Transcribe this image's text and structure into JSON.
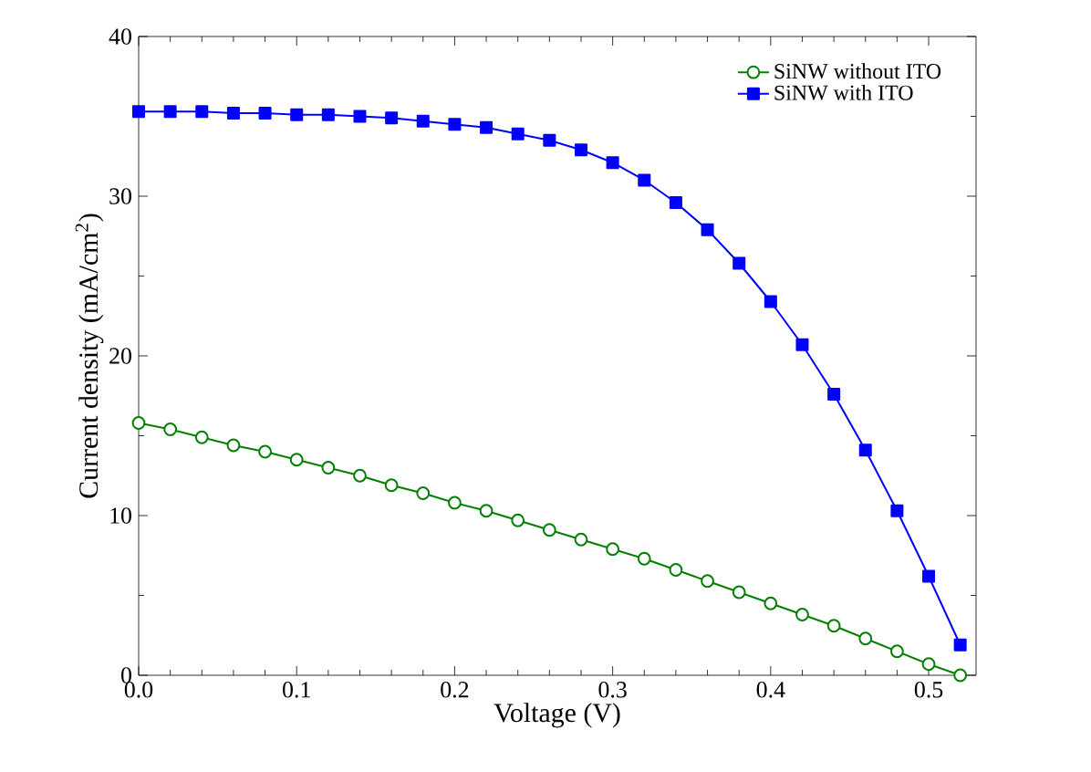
{
  "chart_data": {
    "type": "line",
    "xlabel": "Voltage (V)",
    "ylabel": "Current density (mA/cm$^{2}$)",
    "x": [
      0.0,
      0.02,
      0.04,
      0.06,
      0.08,
      0.1,
      0.12,
      0.14,
      0.16,
      0.18,
      0.2,
      0.22,
      0.24,
      0.26,
      0.28,
      0.3,
      0.32,
      0.34,
      0.36,
      0.38,
      0.4,
      0.42,
      0.44,
      0.46,
      0.48,
      0.5,
      0.52
    ],
    "series": [
      {
        "name": "SiNW without ITO",
        "color": "#008000",
        "marker": "circle",
        "values": [
          15.8,
          15.4,
          14.9,
          14.4,
          14.0,
          13.5,
          13.0,
          12.5,
          11.9,
          11.4,
          10.8,
          10.3,
          9.7,
          9.1,
          8.5,
          7.9,
          7.3,
          6.6,
          5.9,
          5.2,
          4.5,
          3.8,
          3.1,
          2.3,
          1.5,
          0.7,
          0.0
        ]
      },
      {
        "name": "SiNW with ITO",
        "color": "#0000ff",
        "marker": "square",
        "values": [
          35.3,
          35.3,
          35.3,
          35.2,
          35.2,
          35.1,
          35.1,
          35.0,
          34.9,
          34.7,
          34.5,
          34.3,
          33.9,
          33.5,
          32.9,
          32.1,
          31.0,
          29.6,
          27.9,
          25.8,
          23.4,
          20.7,
          17.6,
          14.1,
          10.3,
          6.2,
          1.9
        ]
      }
    ],
    "xlim": [
      0,
      0.53
    ],
    "ylim": [
      0,
      40
    ],
    "xticks": [
      {
        "value": 0,
        "label": "0.0"
      },
      0.1,
      0.2,
      0.3,
      0.4,
      0.5
    ],
    "yticks": [
      0,
      10,
      20,
      30,
      40
    ],
    "grid": false,
    "legend": "top right",
    "line_style": "solid"
  }
}
